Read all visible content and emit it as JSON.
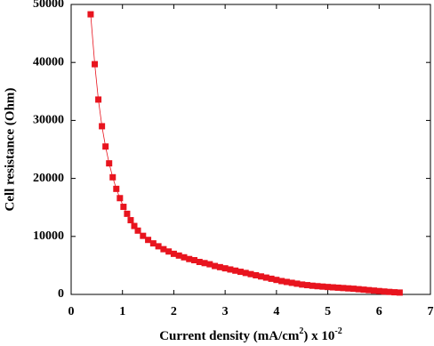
{
  "chart_data": {
    "type": "scatter",
    "xlabel": [
      "Current density (mA/cm",
      "2",
      ") x 10",
      "-2"
    ],
    "ylabel": "Cell resistance (Ohm)",
    "series": [
      {
        "color": "#e8141e",
        "x": [
          0.38,
          0.46,
          0.53,
          0.6,
          0.67,
          0.74,
          0.81,
          0.88,
          0.95,
          1.02,
          1.09,
          1.16,
          1.23,
          1.3,
          1.4,
          1.5,
          1.6,
          1.7,
          1.8,
          1.9,
          2.0,
          2.1,
          2.2,
          2.3,
          2.4,
          2.5,
          2.6,
          2.7,
          2.8,
          2.9,
          3.0,
          3.1,
          3.2,
          3.3,
          3.4,
          3.5,
          3.6,
          3.7,
          3.8,
          3.9,
          4.0,
          4.1,
          4.2,
          4.3,
          4.4,
          4.5,
          4.6,
          4.7,
          4.8,
          4.9,
          5.0,
          5.1,
          5.2,
          5.3,
          5.4,
          5.5,
          5.6,
          5.7,
          5.8,
          5.9,
          6.0,
          6.1,
          6.2,
          6.3,
          6.4
        ],
        "values": [
          48300,
          39700,
          33600,
          29000,
          25500,
          22600,
          20200,
          18200,
          16600,
          15100,
          13900,
          12800,
          11800,
          11000,
          10100,
          9400,
          8800,
          8300,
          7800,
          7400,
          7000,
          6700,
          6400,
          6100,
          5900,
          5600,
          5400,
          5200,
          4900,
          4700,
          4500,
          4300,
          4100,
          3900,
          3700,
          3500,
          3300,
          3100,
          2900,
          2700,
          2500,
          2300,
          2150,
          2000,
          1850,
          1700,
          1600,
          1500,
          1420,
          1350,
          1280,
          1220,
          1160,
          1100,
          1040,
          980,
          900,
          820,
          740,
          660,
          580,
          500,
          430,
          370,
          320
        ]
      }
    ],
    "xlim": [
      0,
      7
    ],
    "xticks": [
      0,
      1,
      2,
      3,
      4,
      5,
      6,
      7
    ],
    "ylim": [
      0,
      50000
    ],
    "yticks": [
      0,
      10000,
      20000,
      30000,
      40000,
      50000
    ]
  }
}
